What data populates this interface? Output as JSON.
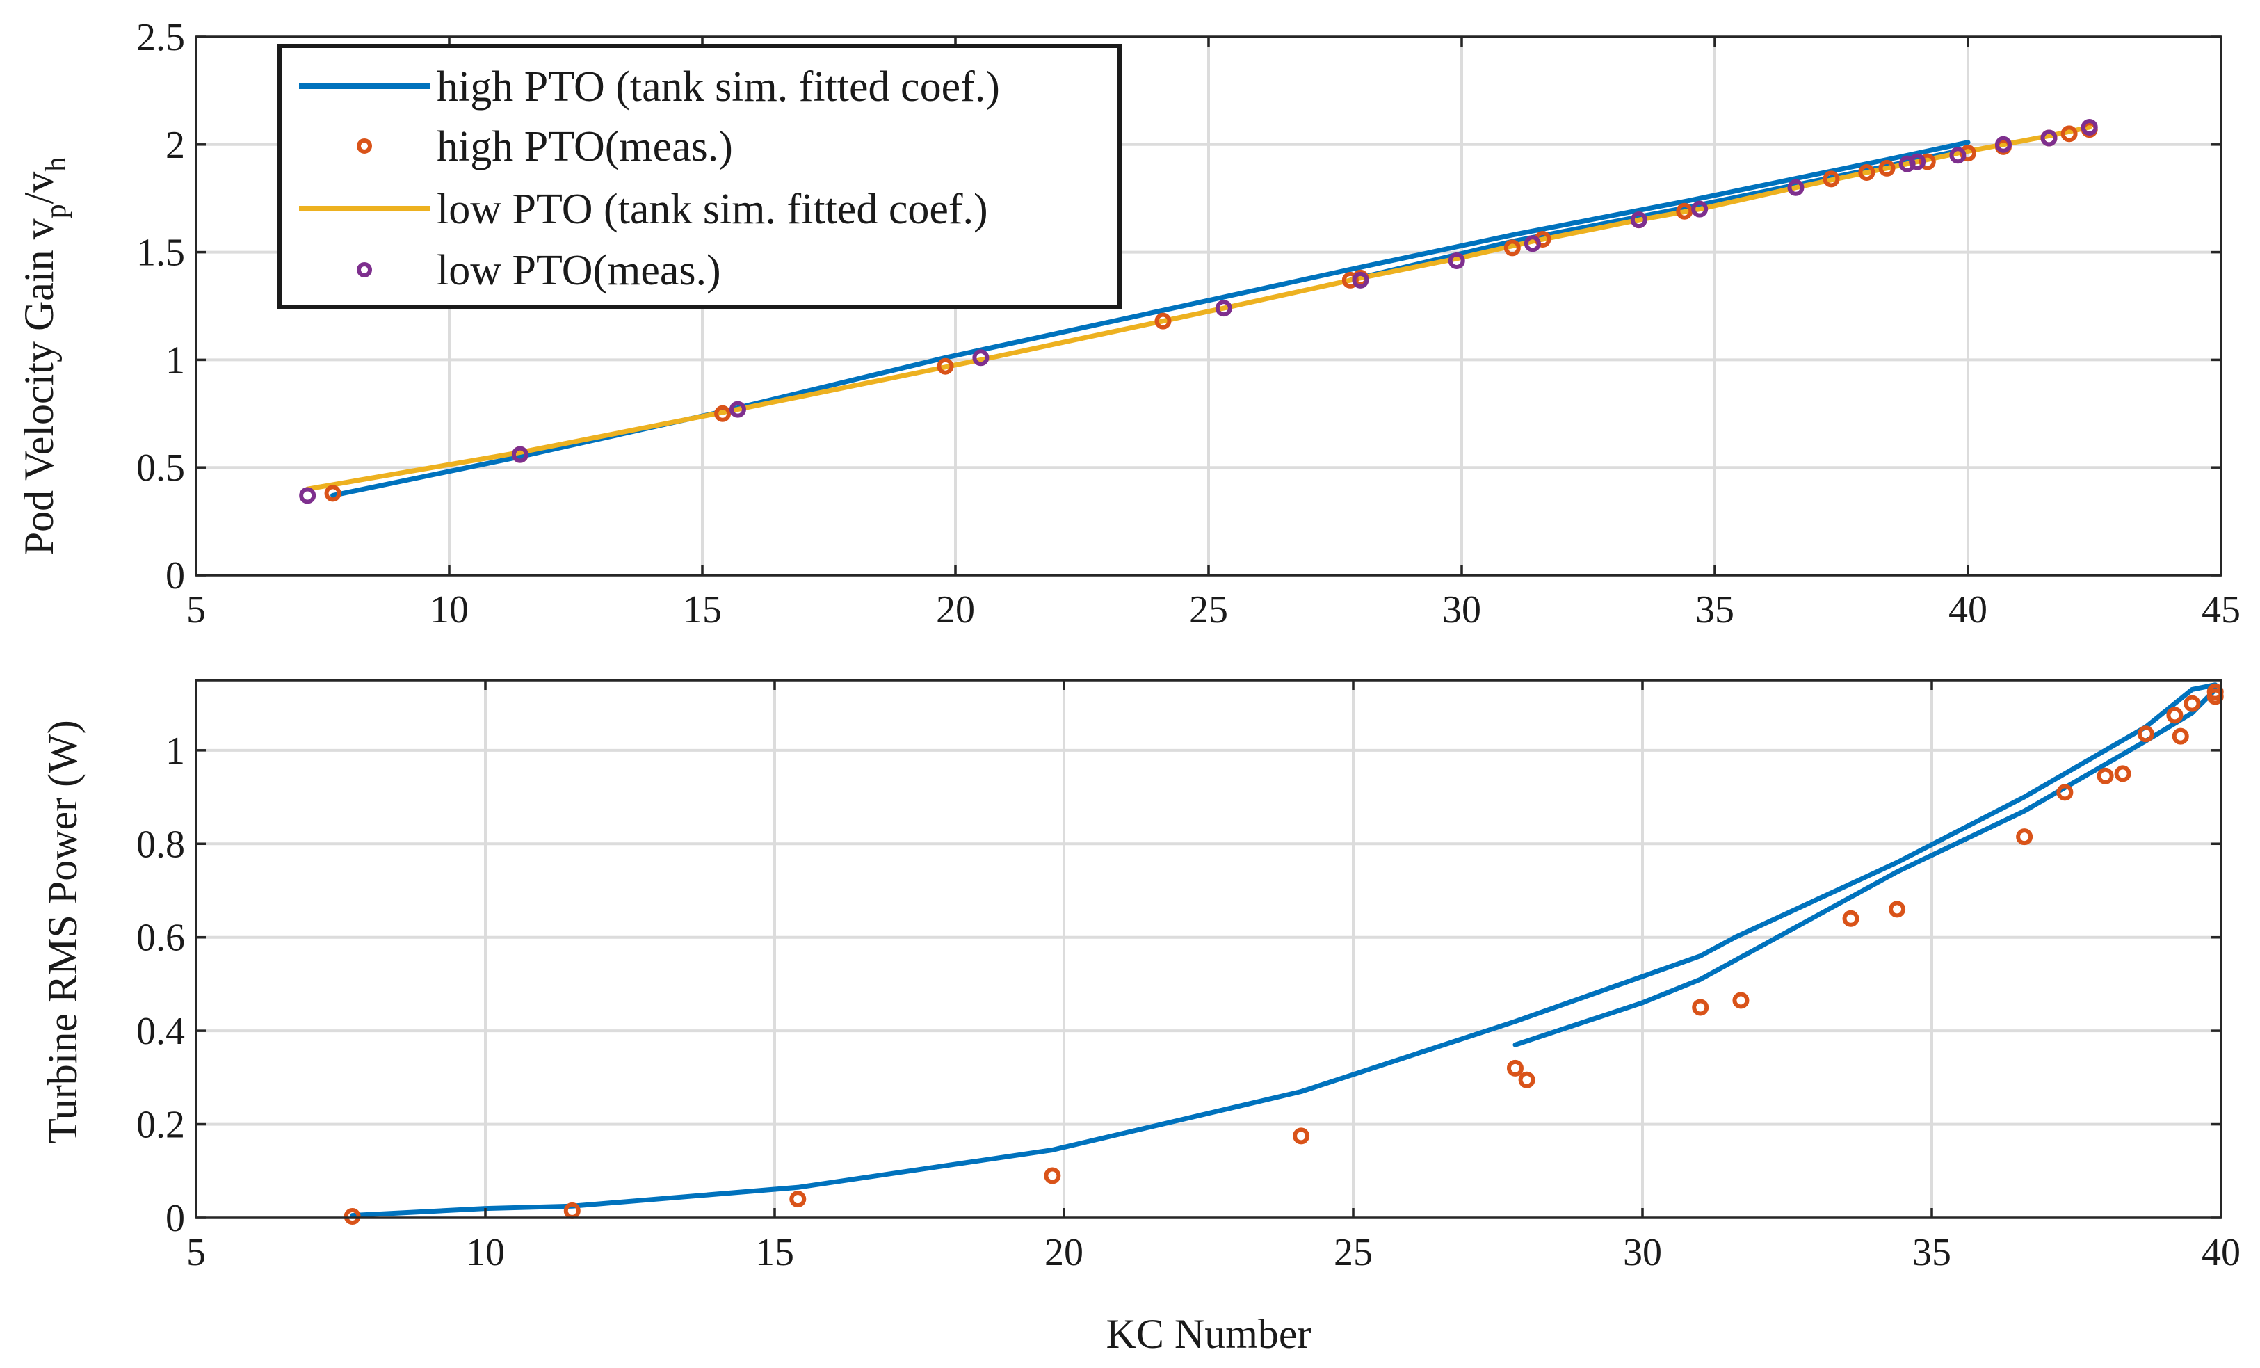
{
  "colors": {
    "high": "#0072BD",
    "low": "#EDB120",
    "high_meas": "#D95319",
    "low_meas": "#7E2F8E"
  },
  "chart_data": [
    {
      "type": "line",
      "ylabel_main": "Pod Velocity Gain v",
      "ylabel_sub1": "p",
      "ylabel_slash": "/v",
      "ylabel_sub2": "h",
      "xlim": [
        5,
        45
      ],
      "ylim": [
        0,
        2.5
      ],
      "xticks": [
        5,
        10,
        15,
        20,
        25,
        30,
        35,
        40,
        45
      ],
      "xtick_labels": [
        "5",
        "10",
        "15",
        "20",
        "25",
        "30",
        "35",
        "40",
        "45"
      ],
      "yticks": [
        0,
        0.5,
        1,
        1.5,
        2,
        2.5
      ],
      "ytick_labels": [
        "0",
        "0.5",
        "1",
        "1.5",
        "2",
        "2.5"
      ],
      "grid": true,
      "legend": {
        "position": "top-left",
        "entries": [
          "high PTO (tank sim. fitted coef.)",
          "high PTO(meas.)",
          "low PTO (tank sim. fitted coef.)",
          "low PTO(meas.)"
        ]
      },
      "series": [
        {
          "name": "high PTO (tank sim. fitted coef.)",
          "kind": "line",
          "color": "#0072BD",
          "x": [
            7.7,
            11.4,
            15.4,
            19.8,
            24.1,
            27.8,
            31.0,
            34.5,
            38.4,
            40.0
          ],
          "y": [
            0.37,
            0.55,
            0.76,
            1.01,
            1.23,
            1.42,
            1.58,
            1.74,
            1.93,
            2.01
          ]
        },
        {
          "name": "high PTO (tank sim. fitted coef.)",
          "kind": "line",
          "color": "#0072BD",
          "x": [
            27.8,
            31.0,
            34.5,
            38.4,
            40.0
          ],
          "y": [
            1.37,
            1.55,
            1.71,
            1.9,
            1.98
          ]
        },
        {
          "name": "low PTO (tank sim. fitted coef.)",
          "kind": "line",
          "color": "#EDB120",
          "x": [
            7.2,
            11.4,
            15.7,
            20.5,
            25.3,
            28.0,
            29.9,
            31.4,
            33.5,
            34.7,
            36.6,
            38.8,
            39.8,
            40.7,
            41.6,
            42.0,
            42.4
          ],
          "y": [
            0.4,
            0.57,
            0.77,
            1.0,
            1.24,
            1.38,
            1.47,
            1.55,
            1.65,
            1.7,
            1.8,
            1.91,
            1.96,
            2.0,
            2.04,
            2.06,
            2.08
          ]
        },
        {
          "name": "high PTO(meas.)",
          "kind": "marker",
          "color": "#D95319",
          "x": [
            7.7,
            11.4,
            15.4,
            19.8,
            24.1,
            27.8,
            28.0,
            31.0,
            31.6,
            33.5,
            34.4,
            37.3,
            38.0,
            38.4,
            39.2,
            40.0,
            40.7,
            41.6,
            42.0,
            42.4
          ],
          "y": [
            0.38,
            0.56,
            0.75,
            0.97,
            1.18,
            1.37,
            1.38,
            1.52,
            1.56,
            1.65,
            1.69,
            1.84,
            1.87,
            1.89,
            1.92,
            1.96,
            1.99,
            2.03,
            2.05,
            2.07
          ]
        },
        {
          "name": "low PTO(meas.)",
          "kind": "marker",
          "color": "#7E2F8E",
          "x": [
            7.2,
            11.4,
            15.7,
            20.5,
            25.3,
            28.0,
            29.9,
            31.4,
            33.5,
            34.7,
            36.6,
            38.8,
            39.0,
            39.8,
            40.7,
            41.6,
            42.4
          ],
          "y": [
            0.37,
            0.56,
            0.77,
            1.01,
            1.24,
            1.37,
            1.46,
            1.54,
            1.65,
            1.7,
            1.8,
            1.91,
            1.92,
            1.95,
            2.0,
            2.03,
            2.08
          ]
        }
      ]
    },
    {
      "type": "line",
      "xlabel": "KC Number",
      "ylabel": "Turbine RMS Power (W)",
      "xlim": [
        5,
        40
      ],
      "ylim": [
        0,
        1.15
      ],
      "xticks": [
        5,
        10,
        15,
        20,
        25,
        30,
        35,
        40
      ],
      "xtick_labels": [
        "5",
        "10",
        "15",
        "20",
        "25",
        "30",
        "35",
        "40"
      ],
      "yticks": [
        0,
        0.2,
        0.4,
        0.6,
        0.8,
        1
      ],
      "ytick_labels": [
        "0",
        "0.2",
        "0.4",
        "0.6",
        "0.8",
        "1"
      ],
      "grid": true,
      "series": [
        {
          "name": "high PTO (tank sim. fitted coef.)",
          "kind": "line",
          "color": "#0072BD",
          "x": [
            7.7,
            10.0,
            11.5,
            15.4,
            19.8,
            24.1,
            27.8,
            31.0,
            31.6,
            34.4,
            36.6,
            38.7,
            39.5,
            39.9
          ],
          "y": [
            0.005,
            0.02,
            0.025,
            0.065,
            0.145,
            0.27,
            0.42,
            0.56,
            0.6,
            0.76,
            0.9,
            1.05,
            1.13,
            1.14
          ]
        },
        {
          "name": "high PTO (tank sim. fitted coef.)",
          "kind": "line",
          "color": "#0072BD",
          "x": [
            27.8,
            30.0,
            31.0,
            34.4,
            36.6,
            38.7,
            39.5,
            39.9
          ],
          "y": [
            0.37,
            0.46,
            0.51,
            0.74,
            0.87,
            1.02,
            1.08,
            1.13
          ]
        },
        {
          "name": "high PTO(meas.)",
          "kind": "marker",
          "color": "#D95319",
          "x": [
            7.7,
            11.5,
            15.4,
            19.8,
            24.1,
            27.8,
            28.0,
            31.0,
            31.7,
            33.6,
            34.4,
            36.6,
            37.3,
            38.0,
            38.3,
            38.7,
            39.2,
            39.3,
            39.5,
            39.9,
            39.9
          ],
          "y": [
            0.003,
            0.015,
            0.04,
            0.09,
            0.175,
            0.32,
            0.295,
            0.45,
            0.465,
            0.64,
            0.66,
            0.815,
            0.91,
            0.945,
            0.95,
            1.035,
            1.075,
            1.03,
            1.1,
            1.125,
            1.115
          ]
        }
      ]
    }
  ]
}
